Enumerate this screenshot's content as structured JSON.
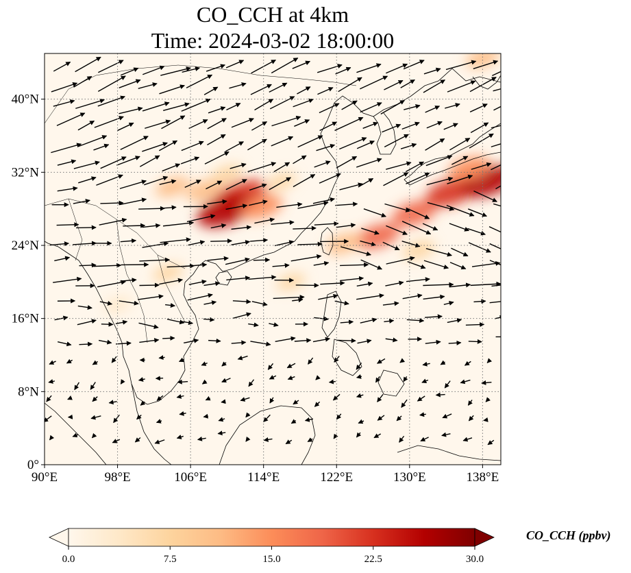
{
  "title": "CO_CCH at 4km",
  "subtitle": "Time: 2024-03-02 18:00:00",
  "map": {
    "lon_ticks": [
      "90°E",
      "98°E",
      "106°E",
      "114°E",
      "122°E",
      "130°E",
      "138°E"
    ],
    "lat_ticks": [
      "0°",
      "8°N",
      "16°N",
      "24°N",
      "32°N",
      "40°N"
    ],
    "lon_tick_values": [
      90,
      98,
      106,
      114,
      122,
      130,
      138
    ],
    "lat_tick_values": [
      0,
      8,
      16,
      24,
      32,
      40
    ],
    "extent": {
      "lon_min": 90,
      "lon_max": 140,
      "lat_min": 0,
      "lat_max": 45
    },
    "gridlines": "dotted",
    "colormap": "OrRd",
    "plumes": [
      {
        "lon": 111.5,
        "lat": 29.5,
        "value": 24
      },
      {
        "lon": 109.8,
        "lat": 27.8,
        "value": 28
      },
      {
        "lon": 113.8,
        "lat": 28.2,
        "value": 16
      },
      {
        "lon": 107.5,
        "lat": 30.0,
        "value": 12
      },
      {
        "lon": 104.0,
        "lat": 30.4,
        "value": 10
      },
      {
        "lon": 110.0,
        "lat": 31.8,
        "value": 8
      },
      {
        "lon": 126.5,
        "lat": 25.0,
        "value": 18
      },
      {
        "lon": 122.8,
        "lat": 24.2,
        "value": 12
      },
      {
        "lon": 130.5,
        "lat": 27.5,
        "value": 18
      },
      {
        "lon": 134.5,
        "lat": 29.8,
        "value": 22
      },
      {
        "lon": 138.5,
        "lat": 31.0,
        "value": 26
      },
      {
        "lon": 136.5,
        "lat": 32.4,
        "value": 16
      },
      {
        "lon": 131.0,
        "lat": 23.5,
        "value": 9
      },
      {
        "lon": 117.0,
        "lat": 20.0,
        "value": 6
      },
      {
        "lon": 103.5,
        "lat": 21.0,
        "value": 7
      },
      {
        "lon": 98.0,
        "lat": 17.5,
        "value": 5
      },
      {
        "lon": 138.0,
        "lat": 44.5,
        "value": 10
      },
      {
        "lon": 116.0,
        "lat": 31.0,
        "value": 6
      }
    ],
    "wind_pattern": "westerly flow north of ~18°N, weaker easterly/northeasterly flow in the south"
  },
  "colorbar": {
    "label": "CO_CCH (ppbv)",
    "ticks": [
      "0.0",
      "7.5",
      "15.0",
      "22.5",
      "30.0"
    ],
    "min": 0,
    "max": 30,
    "extend": "both",
    "color_stops": [
      "#fff7ec",
      "#fee8c8",
      "#fdd49e",
      "#fdbb84",
      "#fc8d59",
      "#ef6548",
      "#d7301f",
      "#b30000",
      "#7f0000"
    ]
  }
}
